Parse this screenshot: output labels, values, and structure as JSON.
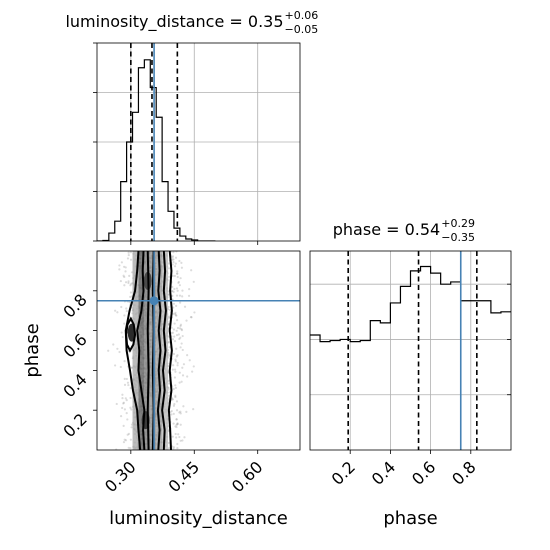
{
  "chart_data": {
    "type": "corner",
    "parameters": [
      "luminosity_distance",
      "phase"
    ],
    "axis_labels": {
      "x_bottom_left": "luminosity_distance",
      "x_bottom_right": "phase",
      "y_left": "phase"
    },
    "ranges": {
      "luminosity_distance": [
        0.22,
        0.7
      ],
      "phase": [
        0.0,
        1.0
      ]
    },
    "grid": true,
    "ticks": {
      "luminosity_distance": [
        {
          "v": 0.3,
          "label": "0.30"
        },
        {
          "v": 0.45,
          "label": "0.45"
        },
        {
          "v": 0.6,
          "label": "0.60"
        }
      ],
      "phase": [
        {
          "v": 0.2,
          "label": "0.2"
        },
        {
          "v": 0.4,
          "label": "0.4"
        },
        {
          "v": 0.6,
          "label": "0.6"
        },
        {
          "v": 0.8,
          "label": "0.8"
        }
      ]
    },
    "marginals": [
      {
        "parameter": "luminosity_distance",
        "title": {
          "main": "luminosity_distance = 0.35",
          "sup": "+0.06",
          "sub": "−0.05"
        },
        "bin_edges": [
          0.22,
          0.234,
          0.248,
          0.262,
          0.276,
          0.29,
          0.304,
          0.318,
          0.332,
          0.346,
          0.36,
          0.374,
          0.388,
          0.402,
          0.416,
          0.43,
          0.444,
          0.458,
          0.472,
          0.486,
          0.5
        ],
        "counts": [
          0,
          0.5,
          8,
          20,
          60,
          100,
          130,
          175,
          183,
          155,
          125,
          60,
          30,
          13,
          5,
          2,
          1,
          0,
          0,
          0
        ],
        "ylim": [
          0,
          200
        ],
        "quantiles": [
          0.3,
          0.35,
          0.41
        ],
        "truth": 0.355
      },
      {
        "parameter": "phase",
        "title": {
          "main": "phase = 0.54",
          "sup": "+0.29",
          "sub": "−0.35"
        },
        "bin_edges": [
          0.0,
          0.05,
          0.1,
          0.15,
          0.2,
          0.25,
          0.3,
          0.35,
          0.4,
          0.45,
          0.5,
          0.55,
          0.6,
          0.65,
          0.7,
          0.75,
          0.8,
          0.85,
          0.9,
          0.95,
          1.0
        ],
        "counts": [
          104,
          98,
          99,
          100,
          98,
          99,
          117,
          115,
          133,
          148,
          162,
          166,
          160,
          150,
          152,
          135,
          135,
          135,
          124,
          125
        ],
        "ylim": [
          0,
          180
        ],
        "quantiles": [
          0.19,
          0.54,
          0.83
        ],
        "truth": 0.75
      }
    ],
    "joint": {
      "x": "luminosity_distance",
      "y": "phase",
      "truth": {
        "x": 0.355,
        "y": 0.75
      },
      "density_columns": [
        {
          "x0": 0.318,
          "x1": 0.332,
          "shade": "#555555"
        },
        {
          "x0": 0.332,
          "x1": 0.346,
          "shade": "#777777"
        },
        {
          "x0": 0.346,
          "x1": 0.36,
          "shade": "#8a8a8a"
        },
        {
          "x0": 0.36,
          "x1": 0.374,
          "shade": "#9a9a9a"
        },
        {
          "x0": 0.304,
          "x1": 0.318,
          "shade": "#a5a5a5"
        },
        {
          "x0": 0.374,
          "x1": 0.388,
          "shade": "#b5b5b5"
        }
      ],
      "dense_spots": [
        {
          "x": 0.302,
          "y": 0.59,
          "shade": "#2a2a2a"
        },
        {
          "x": 0.335,
          "y": 0.15,
          "shade": "#3a3a3a"
        },
        {
          "x": 0.34,
          "y": 0.85,
          "shade": "#4a4a4a"
        }
      ],
      "contours": [
        [
          [
            0.342,
            0.0
          ],
          [
            0.34,
            0.2
          ],
          [
            0.342,
            0.4
          ],
          [
            0.34,
            0.6
          ],
          [
            0.342,
            0.8
          ],
          [
            0.34,
            1.0
          ]
        ],
        [
          [
            0.352,
            0.0
          ],
          [
            0.354,
            0.2
          ],
          [
            0.352,
            0.4
          ],
          [
            0.354,
            0.6
          ],
          [
            0.352,
            0.8
          ],
          [
            0.354,
            1.0
          ]
        ],
        [
          [
            0.332,
            0.0
          ],
          [
            0.329,
            0.1
          ],
          [
            0.332,
            0.2
          ],
          [
            0.325,
            0.3
          ],
          [
            0.318,
            0.4
          ],
          [
            0.32,
            0.5
          ],
          [
            0.315,
            0.6
          ],
          [
            0.325,
            0.7
          ],
          [
            0.33,
            0.8
          ],
          [
            0.328,
            0.9
          ],
          [
            0.33,
            1.0
          ]
        ],
        [
          [
            0.365,
            0.0
          ],
          [
            0.368,
            0.1
          ],
          [
            0.364,
            0.2
          ],
          [
            0.369,
            0.3
          ],
          [
            0.366,
            0.4
          ],
          [
            0.37,
            0.5
          ],
          [
            0.366,
            0.6
          ],
          [
            0.37,
            0.7
          ],
          [
            0.365,
            0.8
          ],
          [
            0.368,
            0.9
          ],
          [
            0.366,
            1.0
          ]
        ],
        [
          [
            0.322,
            0.0
          ],
          [
            0.318,
            0.1
          ],
          [
            0.315,
            0.2
          ],
          [
            0.305,
            0.3
          ],
          [
            0.298,
            0.4
          ],
          [
            0.29,
            0.5
          ],
          [
            0.288,
            0.6
          ],
          [
            0.297,
            0.7
          ],
          [
            0.31,
            0.8
          ],
          [
            0.315,
            0.9
          ],
          [
            0.318,
            1.0
          ]
        ],
        [
          [
            0.378,
            0.0
          ],
          [
            0.38,
            0.1
          ],
          [
            0.374,
            0.2
          ],
          [
            0.38,
            0.3
          ],
          [
            0.376,
            0.4
          ],
          [
            0.382,
            0.5
          ],
          [
            0.378,
            0.6
          ],
          [
            0.383,
            0.7
          ],
          [
            0.378,
            0.8
          ],
          [
            0.381,
            0.9
          ],
          [
            0.378,
            1.0
          ]
        ],
        [
          [
            0.395,
            0.0
          ],
          [
            0.393,
            0.1
          ],
          [
            0.39,
            0.2
          ],
          [
            0.396,
            0.3
          ],
          [
            0.392,
            0.4
          ],
          [
            0.397,
            0.5
          ],
          [
            0.392,
            0.6
          ],
          [
            0.397,
            0.7
          ],
          [
            0.393,
            0.8
          ],
          [
            0.396,
            0.9
          ],
          [
            0.392,
            1.0
          ]
        ]
      ],
      "blob_contour": [
        [
          0.3,
          0.66
        ],
        [
          0.292,
          0.63
        ],
        [
          0.289,
          0.58
        ],
        [
          0.291,
          0.53
        ],
        [
          0.298,
          0.5
        ],
        [
          0.306,
          0.53
        ],
        [
          0.31,
          0.58
        ],
        [
          0.307,
          0.63
        ]
      ],
      "scatter_x_range": [
        0.24,
        0.46
      ]
    }
  }
}
